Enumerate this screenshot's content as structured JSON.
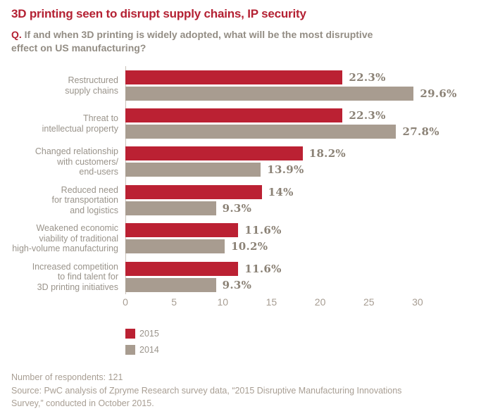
{
  "header": {
    "title": "3D printing seen to disrupt supply chains, IP security",
    "question_prefix": "Q.",
    "question_line1": " If and when 3D printing is widely adopted, what will be the most disruptive",
    "question_line2": "effect on US manufacturing?"
  },
  "chart_data": {
    "type": "bar",
    "orientation": "horizontal",
    "title": "3D printing seen to disrupt supply chains, IP security",
    "categories": [
      "Restructured\nsupply chains",
      "Threat to\nintellectual property",
      "Changed relationship\nwith customers/\nend-users",
      "Reduced need\nfor transportation\nand logistics",
      "Weakened economic\nviability of traditional\nhigh-volume manufacturing",
      "Increased competition\nto find talent for\n3D printing initiatives"
    ],
    "series": [
      {
        "name": "2015",
        "color": "#bb2133",
        "values": [
          22.3,
          22.3,
          18.2,
          14,
          11.6,
          11.6
        ],
        "value_labels": [
          "22.3%",
          "22.3%",
          "18.2%",
          "14%",
          "11.6%",
          "11.6%"
        ]
      },
      {
        "name": "2014",
        "color": "#a89c90",
        "values": [
          29.6,
          27.8,
          13.9,
          9.3,
          10.2,
          9.3
        ],
        "value_labels": [
          "29.6%",
          "27.8%",
          "13.9%",
          "9.3%",
          "10.2%",
          "9.3%"
        ]
      }
    ],
    "x_ticks": [
      "0",
      "5",
      "10",
      "15",
      "20",
      "25",
      "30"
    ],
    "xlim": [
      0,
      30
    ],
    "grid": false,
    "legend_position": "bottom-left"
  },
  "footer": {
    "respondents": "Number of respondents: 121",
    "source_line1": "Source: PwC analysis of Zpryme Research survey data, “2015 Disruptive Manufacturing Innovations",
    "source_line2": "Survey,” conducted in October 2015."
  },
  "colors": {
    "accent_red": "#bb2133",
    "bar_gray": "#a89c90",
    "category_label": "#9a948b",
    "value_label": "#8b8276",
    "axis_line": "#c9c1b8",
    "tick_label": "#a79d92",
    "footer_text": "#a89e93"
  }
}
